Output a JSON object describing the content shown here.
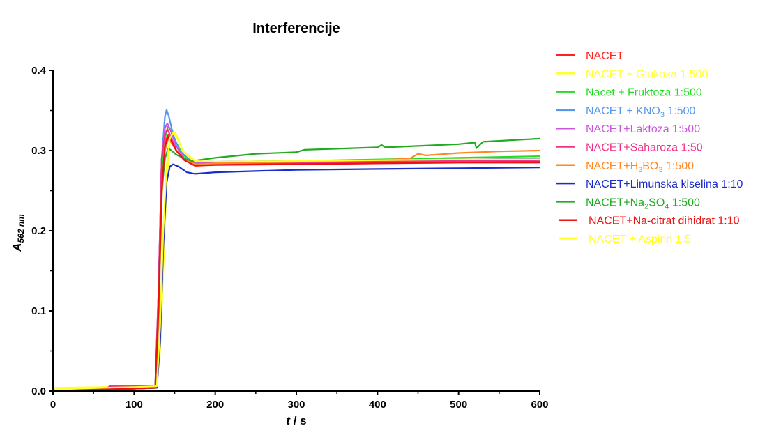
{
  "chart_data": {
    "type": "line",
    "title": "Interferencije",
    "xlabel": {
      "main": "t",
      "unit": " / s"
    },
    "ylabel": {
      "main": "A",
      "sub": "562 nm"
    },
    "xlim": [
      0,
      600
    ],
    "ylim": [
      0,
      0.4
    ],
    "xticks": [
      0,
      100,
      200,
      300,
      400,
      500,
      600
    ],
    "yticks": [
      0.0,
      0.1,
      0.2,
      0.3,
      0.4
    ],
    "xtick_labels": [
      "0",
      "100",
      "200",
      "300",
      "400",
      "500",
      "600"
    ],
    "ytick_labels": [
      "0.0",
      "0.1",
      "0.2",
      "0.3",
      "0.4"
    ],
    "grid": false,
    "legend_position": "right",
    "series": [
      {
        "name": "NACET",
        "color": "#ff2020",
        "points": [
          [
            0,
            0.0
          ],
          [
            60,
            0.002
          ],
          [
            100,
            0.003
          ],
          [
            126,
            0.004
          ],
          [
            130,
            0.1
          ],
          [
            134,
            0.26
          ],
          [
            138,
            0.31
          ],
          [
            142,
            0.32
          ],
          [
            146,
            0.31
          ],
          [
            152,
            0.3
          ],
          [
            160,
            0.29
          ],
          [
            175,
            0.282
          ],
          [
            200,
            0.283
          ],
          [
            300,
            0.284
          ],
          [
            400,
            0.285
          ],
          [
            500,
            0.286
          ],
          [
            600,
            0.286
          ]
        ]
      },
      {
        "name": "NACET + Glukoza 1:500",
        "color": "#ffff33",
        "points": [
          [
            0,
            0.004
          ],
          [
            60,
            0.005
          ],
          [
            100,
            0.006
          ],
          [
            128,
            0.007
          ],
          [
            132,
            0.05
          ],
          [
            136,
            0.15
          ],
          [
            140,
            0.26
          ],
          [
            144,
            0.31
          ],
          [
            148,
            0.325
          ],
          [
            152,
            0.32
          ],
          [
            160,
            0.3
          ],
          [
            175,
            0.285
          ],
          [
            200,
            0.285
          ],
          [
            300,
            0.286
          ],
          [
            400,
            0.287
          ],
          [
            500,
            0.288
          ],
          [
            600,
            0.288
          ]
        ]
      },
      {
        "name": "Nacet + Fruktoza 1:500",
        "color": "#22dd22",
        "points": [
          [
            0,
            0.0
          ],
          [
            60,
            0.003
          ],
          [
            100,
            0.004
          ],
          [
            126,
            0.005
          ],
          [
            130,
            0.1
          ],
          [
            134,
            0.27
          ],
          [
            138,
            0.315
          ],
          [
            142,
            0.33
          ],
          [
            146,
            0.325
          ],
          [
            152,
            0.31
          ],
          [
            160,
            0.295
          ],
          [
            175,
            0.284
          ],
          [
            200,
            0.286
          ],
          [
            300,
            0.287
          ],
          [
            400,
            0.289
          ],
          [
            500,
            0.291
          ],
          [
            600,
            0.293
          ]
        ]
      },
      {
        "name": "NACET + KNO3 1:500",
        "name_main": "NACET + KNO",
        "name_sub": "3",
        "name_after": " 1:500",
        "color": "#5599ee",
        "points": [
          [
            0,
            0.0
          ],
          [
            60,
            0.003
          ],
          [
            100,
            0.004
          ],
          [
            126,
            0.005
          ],
          [
            130,
            0.12
          ],
          [
            134,
            0.29
          ],
          [
            138,
            0.342
          ],
          [
            140,
            0.351
          ],
          [
            143,
            0.342
          ],
          [
            148,
            0.32
          ],
          [
            156,
            0.3
          ],
          [
            170,
            0.287
          ],
          [
            200,
            0.286
          ],
          [
            300,
            0.287
          ],
          [
            400,
            0.288
          ],
          [
            500,
            0.289
          ],
          [
            600,
            0.29
          ]
        ]
      },
      {
        "name": "NACET+Laktoza 1:500",
        "color": "#cc55dd",
        "points": [
          [
            0,
            0.0
          ],
          [
            60,
            0.003
          ],
          [
            100,
            0.004
          ],
          [
            126,
            0.005
          ],
          [
            130,
            0.12
          ],
          [
            134,
            0.29
          ],
          [
            138,
            0.328
          ],
          [
            141,
            0.334
          ],
          [
            145,
            0.325
          ],
          [
            152,
            0.305
          ],
          [
            162,
            0.29
          ],
          [
            175,
            0.284
          ],
          [
            200,
            0.285
          ],
          [
            300,
            0.286
          ],
          [
            400,
            0.287
          ],
          [
            500,
            0.288
          ],
          [
            600,
            0.289
          ]
        ]
      },
      {
        "name": "NACET+Saharoza 1:50",
        "color": "#ee3388",
        "points": [
          [
            0,
            0.0
          ],
          [
            60,
            0.003
          ],
          [
            66,
            0.003
          ],
          [
            70,
            0.006
          ],
          [
            100,
            0.006
          ],
          [
            126,
            0.007
          ],
          [
            130,
            0.12
          ],
          [
            134,
            0.29
          ],
          [
            138,
            0.32
          ],
          [
            141,
            0.327
          ],
          [
            145,
            0.318
          ],
          [
            152,
            0.3
          ],
          [
            162,
            0.288
          ],
          [
            175,
            0.283
          ],
          [
            200,
            0.284
          ],
          [
            300,
            0.285
          ],
          [
            400,
            0.286
          ],
          [
            500,
            0.287
          ],
          [
            600,
            0.288
          ]
        ]
      },
      {
        "name": "NACET+H3BO3 1:500",
        "name_main": "NACET+H",
        "name_sub": "3",
        "name_after": "BO",
        "name_sub2": "3",
        "name_after2": " 1:500",
        "color": "#ff8822",
        "points": [
          [
            0,
            0.0
          ],
          [
            60,
            0.002
          ],
          [
            100,
            0.003
          ],
          [
            126,
            0.004
          ],
          [
            130,
            0.08
          ],
          [
            134,
            0.24
          ],
          [
            138,
            0.3
          ],
          [
            142,
            0.315
          ],
          [
            146,
            0.31
          ],
          [
            152,
            0.3
          ],
          [
            160,
            0.29
          ],
          [
            175,
            0.283
          ],
          [
            200,
            0.284
          ],
          [
            300,
            0.286
          ],
          [
            400,
            0.288
          ],
          [
            440,
            0.29
          ],
          [
            450,
            0.296
          ],
          [
            460,
            0.294
          ],
          [
            500,
            0.297
          ],
          [
            550,
            0.299
          ],
          [
            600,
            0.3
          ]
        ]
      },
      {
        "name": "NACET+Limunska kiselina 1:10",
        "color": "#1a2ccc",
        "points": [
          [
            0,
            0.0
          ],
          [
            60,
            0.002
          ],
          [
            100,
            0.003
          ],
          [
            128,
            0.004
          ],
          [
            132,
            0.06
          ],
          [
            136,
            0.18
          ],
          [
            140,
            0.26
          ],
          [
            144,
            0.28
          ],
          [
            148,
            0.283
          ],
          [
            155,
            0.28
          ],
          [
            165,
            0.273
          ],
          [
            175,
            0.271
          ],
          [
            200,
            0.273
          ],
          [
            300,
            0.276
          ],
          [
            400,
            0.277
          ],
          [
            500,
            0.278
          ],
          [
            600,
            0.279
          ]
        ]
      },
      {
        "name": "NACET+Na2SO4 1:500",
        "name_main": "NACET+Na",
        "name_sub": "2",
        "name_after": "SO",
        "name_sub2": "4",
        "name_after2": " 1:500",
        "color": "#22aa22",
        "points": [
          [
            0,
            0.0
          ],
          [
            60,
            0.002
          ],
          [
            100,
            0.003
          ],
          [
            126,
            0.004
          ],
          [
            130,
            0.1
          ],
          [
            134,
            0.25
          ],
          [
            138,
            0.29
          ],
          [
            142,
            0.303
          ],
          [
            146,
            0.3
          ],
          [
            152,
            0.295
          ],
          [
            162,
            0.29
          ],
          [
            172,
            0.287
          ],
          [
            200,
            0.291
          ],
          [
            250,
            0.296
          ],
          [
            300,
            0.298
          ],
          [
            310,
            0.301
          ],
          [
            400,
            0.304
          ],
          [
            405,
            0.307
          ],
          [
            410,
            0.304
          ],
          [
            500,
            0.308
          ],
          [
            520,
            0.31
          ],
          [
            522,
            0.303
          ],
          [
            530,
            0.311
          ],
          [
            600,
            0.315
          ]
        ]
      },
      {
        "name": "NACET+Na-citrat dihidrat 1:10",
        "color": "#ee1111",
        "points": [
          [
            0,
            0.0
          ],
          [
            60,
            0.002
          ],
          [
            100,
            0.003
          ],
          [
            126,
            0.004
          ],
          [
            130,
            0.1
          ],
          [
            134,
            0.25
          ],
          [
            138,
            0.305
          ],
          [
            142,
            0.317
          ],
          [
            146,
            0.312
          ],
          [
            152,
            0.3
          ],
          [
            162,
            0.288
          ],
          [
            175,
            0.281
          ],
          [
            200,
            0.282
          ],
          [
            300,
            0.283
          ],
          [
            400,
            0.284
          ],
          [
            500,
            0.285
          ],
          [
            600,
            0.285
          ]
        ]
      },
      {
        "name": "NACET + Aspirin 1:5",
        "color": "#ffff22",
        "points": [
          [
            0,
            0.002
          ],
          [
            60,
            0.004
          ],
          [
            100,
            0.005
          ],
          [
            128,
            0.006
          ],
          [
            132,
            0.08
          ],
          [
            136,
            0.2
          ],
          [
            140,
            0.28
          ],
          [
            144,
            0.315
          ],
          [
            148,
            0.322
          ],
          [
            152,
            0.318
          ],
          [
            160,
            0.3
          ],
          [
            175,
            0.287
          ],
          [
            200,
            0.286
          ],
          [
            300,
            0.287
          ],
          [
            400,
            0.288
          ],
          [
            500,
            0.289
          ],
          [
            600,
            0.289
          ]
        ]
      }
    ]
  }
}
